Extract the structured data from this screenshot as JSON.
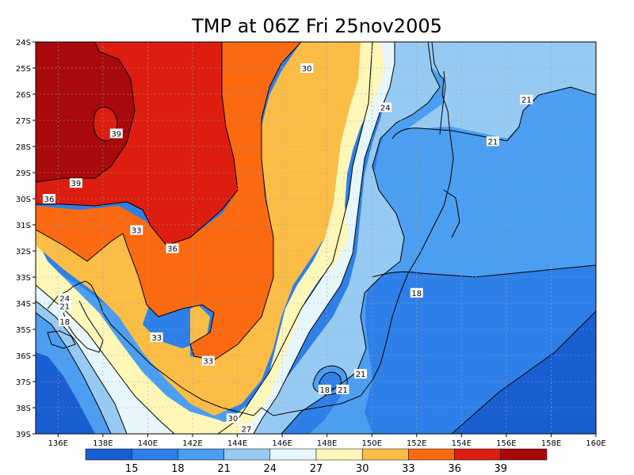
{
  "title": "TMP at 06Z Fri 25nov2005",
  "lat_ticks": [
    "24S",
    "25S",
    "26S",
    "27S",
    "28S",
    "29S",
    "30S",
    "31S",
    "32S",
    "33S",
    "34S",
    "35S",
    "36S",
    "37S",
    "38S",
    "39S"
  ],
  "lon_ticks": [
    "136E",
    "138E",
    "140E",
    "142E",
    "144E",
    "146E",
    "148E",
    "150E",
    "152E",
    "154E",
    "156E",
    "158E",
    "160E"
  ],
  "colorbar": {
    "ticks": [
      "15",
      "18",
      "21",
      "24",
      "27",
      "30",
      "33",
      "36",
      "39"
    ],
    "colors": [
      "#1a5fd1",
      "#2e7fe8",
      "#4c9ef0",
      "#97caf3",
      "#e6f6fb",
      "#fff7b8",
      "#fcbd46",
      "#fb6a11",
      "#dc1d10",
      "#a8090b"
    ]
  },
  "contour_labels": [
    {
      "text": "30",
      "lon": 147.1,
      "lat": -25.0
    },
    {
      "text": "24",
      "lon": 150.6,
      "lat": -26.5
    },
    {
      "text": "21",
      "lon": 156.9,
      "lat": -26.2
    },
    {
      "text": "21",
      "lon": 155.4,
      "lat": -27.8
    },
    {
      "text": "39",
      "lon": 138.6,
      "lat": -27.5
    },
    {
      "text": "39",
      "lon": 136.8,
      "lat": -29.4
    },
    {
      "text": "36",
      "lon": 135.6,
      "lat": -30.0
    },
    {
      "text": "33",
      "lon": 139.5,
      "lat": -31.2
    },
    {
      "text": "36",
      "lon": 141.1,
      "lat": -31.9
    },
    {
      "text": "24",
      "lon": 136.3,
      "lat": -33.8
    },
    {
      "text": "21",
      "lon": 136.3,
      "lat": -34.1
    },
    {
      "text": "18",
      "lon": 136.3,
      "lat": -34.7
    },
    {
      "text": "18",
      "lon": 152.0,
      "lat": -33.6
    },
    {
      "text": "33",
      "lon": 140.4,
      "lat": -35.3
    },
    {
      "text": "33",
      "lon": 142.7,
      "lat": -36.2
    },
    {
      "text": "21",
      "lon": 149.5,
      "lat": -36.7
    },
    {
      "text": "18",
      "lon": 147.9,
      "lat": -37.3
    },
    {
      "text": "21",
      "lon": 148.7,
      "lat": -37.3
    },
    {
      "text": "30",
      "lon": 143.8,
      "lat": -38.4
    },
    {
      "text": "27",
      "lon": 144.4,
      "lat": -38.8
    }
  ]
}
